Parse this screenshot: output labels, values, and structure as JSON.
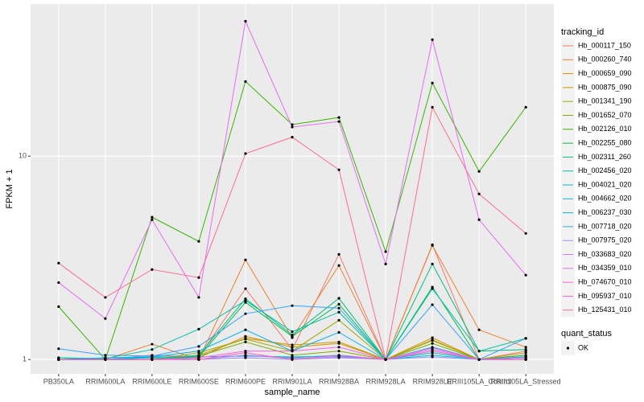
{
  "chart_data": {
    "type": "line",
    "x_label": "sample_name",
    "y_label": "FPKM + 1",
    "categories": [
      "PB350LA",
      "RRIM600LA",
      "RRIM600LE",
      "RRIM600SE",
      "RRIM600PE",
      "RRIM901LA",
      "RRIM928BA",
      "RRIM928LA",
      "RRIM928LE",
      "RRIII105LA_Control",
      "RRIII105LA_Stressed"
    ],
    "log_y": true,
    "ylim": [
      0.85,
      56
    ],
    "yticks": [
      1,
      10
    ],
    "grid": true,
    "legend_title": "tracking_id",
    "legend_position": "right",
    "point_legend": {
      "title": "quant_status",
      "labels": [
        "OK"
      ],
      "color": "#000000"
    },
    "series": [
      {
        "name": "Hb_000117_150",
        "color": "#F8766D",
        "values": [
          1.0,
          1.0,
          1.05,
          1.03,
          2.23,
          1.12,
          3.29,
          1.0,
          3.67,
          1.0,
          1.1
        ]
      },
      {
        "name": "Hb_000260_740",
        "color": "#EA8331",
        "values": [
          1.0,
          1.0,
          1.19,
          1.0,
          3.09,
          1.28,
          2.9,
          1.0,
          3.64,
          1.4,
          1.15
        ]
      },
      {
        "name": "Hb_000659_090",
        "color": "#D89000",
        "values": [
          1.0,
          1.0,
          1.02,
          1.02,
          1.3,
          1.15,
          1.2,
          1.0,
          1.28,
          1.0,
          1.05
        ]
      },
      {
        "name": "Hb_000875_090",
        "color": "#C09B00",
        "values": [
          1.0,
          1.0,
          1.0,
          1.05,
          1.27,
          1.18,
          1.22,
          1.0,
          1.25,
          1.0,
          1.08
        ]
      },
      {
        "name": "Hb_001341_190",
        "color": "#A3A500",
        "values": [
          1.0,
          1.0,
          1.0,
          1.08,
          1.26,
          1.1,
          1.56,
          1.0,
          1.24,
          1.0,
          1.03
        ]
      },
      {
        "name": "Hb_001652_070",
        "color": "#7CAE00",
        "values": [
          1.0,
          1.0,
          1.0,
          1.04,
          1.22,
          1.05,
          1.1,
          1.0,
          1.2,
          1.0,
          1.02
        ]
      },
      {
        "name": "Hb_002126_010",
        "color": "#39B600",
        "values": [
          1.82,
          1.0,
          5.01,
          3.81,
          23.3,
          14.3,
          15.5,
          3.39,
          22.9,
          8.41,
          17.4
        ]
      },
      {
        "name": "Hb_002255_080",
        "color": "#00BB4E",
        "values": [
          1.0,
          1.0,
          1.0,
          1.03,
          1.91,
          1.3,
          1.87,
          1.0,
          2.27,
          1.0,
          1.05
        ]
      },
      {
        "name": "Hb_002311_260",
        "color": "#00BF7D",
        "values": [
          1.02,
          1.0,
          1.0,
          1.05,
          1.99,
          1.32,
          2.0,
          1.0,
          2.95,
          1.1,
          1.12
        ]
      },
      {
        "name": "Hb_002456_020",
        "color": "#00C1A3",
        "values": [
          1.02,
          1.01,
          1.12,
          1.41,
          1.95,
          1.37,
          1.71,
          1.0,
          2.23,
          1.1,
          1.27
        ]
      },
      {
        "name": "Hb_004021_020",
        "color": "#00BFC4",
        "values": [
          1.0,
          1.0,
          1.02,
          1.0,
          1.05,
          1.02,
          1.05,
          1.0,
          1.08,
          1.0,
          1.0
        ]
      },
      {
        "name": "Hb_004662_020",
        "color": "#00BAE0",
        "values": [
          1.0,
          1.0,
          1.03,
          1.03,
          1.04,
          1.03,
          1.04,
          1.0,
          1.05,
          1.0,
          1.0
        ]
      },
      {
        "name": "Hb_006237_030",
        "color": "#00B0F6",
        "values": [
          1.0,
          1.02,
          1.03,
          1.1,
          1.4,
          1.1,
          1.36,
          1.0,
          1.15,
          1.0,
          1.03
        ]
      },
      {
        "name": "Hb_007718_020",
        "color": "#35A2FF",
        "values": [
          1.13,
          1.05,
          1.04,
          1.16,
          1.68,
          1.84,
          1.79,
          1.0,
          1.86,
          1.0,
          1.27
        ]
      },
      {
        "name": "Hb_007975_020",
        "color": "#9590FF",
        "values": [
          1.0,
          1.0,
          1.0,
          1.0,
          1.02,
          1.0,
          1.02,
          1.0,
          1.03,
          1.0,
          1.0
        ]
      },
      {
        "name": "Hb_033683_020",
        "color": "#C77CFF",
        "values": [
          1.0,
          1.0,
          1.0,
          1.0,
          1.05,
          1.01,
          1.03,
          1.0,
          1.12,
          1.0,
          1.0
        ]
      },
      {
        "name": "Hb_034359_010",
        "color": "#E76BF3",
        "values": [
          2.39,
          1.59,
          4.87,
          2.02,
          46.1,
          13.9,
          14.8,
          2.95,
          37.4,
          4.87,
          2.6
        ]
      },
      {
        "name": "Hb_074670_010",
        "color": "#FA62DB",
        "values": [
          1.0,
          1.0,
          1.0,
          1.02,
          1.1,
          1.1,
          1.15,
          1.0,
          1.14,
          1.0,
          1.02
        ]
      },
      {
        "name": "Hb_095937_010",
        "color": "#FF62BC",
        "values": [
          1.0,
          1.0,
          1.0,
          1.0,
          1.08,
          1.0,
          1.05,
          1.0,
          1.1,
          1.0,
          1.0
        ]
      },
      {
        "name": "Hb_125431_010",
        "color": "#FF6C91",
        "values": [
          2.98,
          2.02,
          2.77,
          2.53,
          10.3,
          12.4,
          8.57,
          1.0,
          17.4,
          6.52,
          4.17
        ]
      }
    ]
  }
}
